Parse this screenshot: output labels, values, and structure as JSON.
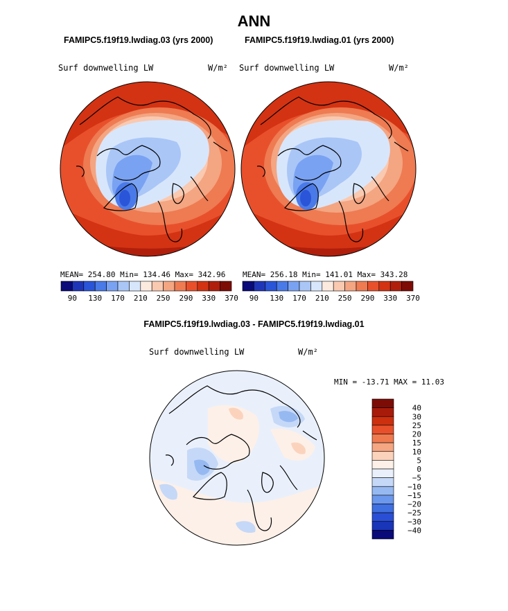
{
  "page_title": "ANN",
  "panel1": {
    "subtitle": "FAMIPC5.f19f19.lwdiag.03 (yrs 2000)",
    "variable": "Surf downwelling LW",
    "units": "W/m²",
    "stats": "MEAN= 254.80   Min= 134.46   Max= 342.96"
  },
  "panel2": {
    "subtitle": "FAMIPC5.f19f19.lwdiag.01 (yrs 2000)",
    "variable": "Surf downwelling LW",
    "units": "W/m²",
    "stats": "MEAN= 256.18   Min= 141.01   Max= 343.28"
  },
  "panel3": {
    "subtitle": "FAMIPC5.f19f19.lwdiag.03 - FAMIPC5.f19f19.lwdiag.01",
    "variable": "Surf downwelling LW",
    "units": "W/m²",
    "stats": "MIN = -13.71 MAX =  11.03"
  },
  "colors": {
    "abs_scale": [
      "#0a0a7a",
      "#1f35b8",
      "#2b55d8",
      "#4a7ae8",
      "#7aa2f2",
      "#a9c6f7",
      "#d8e6fb",
      "#fdeadf",
      "#f9c9b0",
      "#f4a582",
      "#ee7b52",
      "#e8502c",
      "#d33313",
      "#b01f0c",
      "#7e0c06"
    ],
    "diff_scale": [
      "#7e0c06",
      "#a81b0a",
      "#cc300f",
      "#e8502c",
      "#ef7a4f",
      "#f5a682",
      "#fbd3bd",
      "#fdf0e8",
      "#e9f0fb",
      "#c5d8f7",
      "#96b9f2",
      "#6b97ec",
      "#3f6fe0",
      "#2a4fd6",
      "#1935b8",
      "#0a0a7a"
    ]
  },
  "chart_data": [
    {
      "type": "heatmap",
      "title": "FAMIPC5.f19f19.lwdiag.03 (yrs 2000)",
      "variable": "Surf downwelling LW",
      "units": "W/m²",
      "mean": 254.8,
      "min": 134.46,
      "max": 342.96,
      "colorbar_levels": [
        90,
        110,
        130,
        150,
        170,
        190,
        210,
        230,
        250,
        270,
        290,
        310,
        330,
        350,
        370
      ],
      "colorbar_tick_labels": [
        "90",
        "130",
        "170",
        "210",
        "250",
        "290",
        "330",
        "370"
      ]
    },
    {
      "type": "heatmap",
      "title": "FAMIPC5.f19f19.lwdiag.01 (yrs 2000)",
      "variable": "Surf downwelling LW",
      "units": "W/m²",
      "mean": 256.18,
      "min": 141.01,
      "max": 343.28,
      "colorbar_levels": [
        90,
        110,
        130,
        150,
        170,
        190,
        210,
        230,
        250,
        270,
        290,
        310,
        330,
        350,
        370
      ],
      "colorbar_tick_labels": [
        "90",
        "130",
        "170",
        "210",
        "250",
        "290",
        "330",
        "370"
      ]
    },
    {
      "type": "heatmap",
      "title": "FAMIPC5.f19f19.lwdiag.03 - FAMIPC5.f19f19.lwdiag.01",
      "variable": "Surf downwelling LW",
      "units": "W/m²",
      "min": -13.71,
      "max": 11.03,
      "colorbar_levels": [
        40,
        30,
        25,
        20,
        15,
        10,
        5,
        0,
        -5,
        -10,
        -15,
        -20,
        -25,
        -30,
        -40
      ],
      "colorbar_tick_labels": [
        "40",
        "30",
        "25",
        "20",
        "15",
        "10",
        "5",
        "0",
        "−5",
        "−10",
        "−15",
        "−20",
        "−25",
        "−30",
        "−40"
      ]
    }
  ]
}
